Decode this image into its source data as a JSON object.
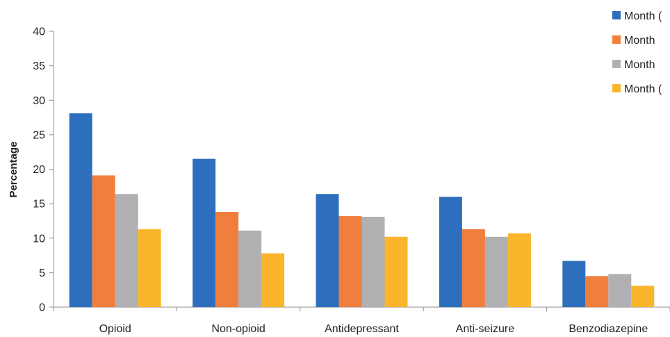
{
  "chart_data": {
    "type": "bar",
    "title": "",
    "xlabel": "",
    "ylabel": "Percentage",
    "ylim": [
      0,
      40
    ],
    "yticks": [
      0,
      5,
      10,
      15,
      20,
      25,
      30,
      35,
      40
    ],
    "grid": false,
    "legend_position": "top-right",
    "categories": [
      "Opioid",
      "Non-opioid",
      "Antidepressant",
      "Anti-seizure",
      "Benzodiazepine"
    ],
    "series": [
      {
        "name": "Month (",
        "color": "#2e6fbd",
        "values": [
          28.1,
          21.5,
          16.4,
          16.0,
          6.7
        ]
      },
      {
        "name": "Month",
        "color": "#f07f3d",
        "values": [
          19.1,
          13.8,
          13.2,
          11.3,
          4.5
        ]
      },
      {
        "name": "Month",
        "color": "#b0b0b3",
        "values": [
          16.4,
          11.1,
          13.1,
          10.2,
          4.8
        ]
      },
      {
        "name": "Month (",
        "color": "#fbb52d",
        "values": [
          11.3,
          7.8,
          10.2,
          10.7,
          3.1
        ]
      }
    ]
  }
}
